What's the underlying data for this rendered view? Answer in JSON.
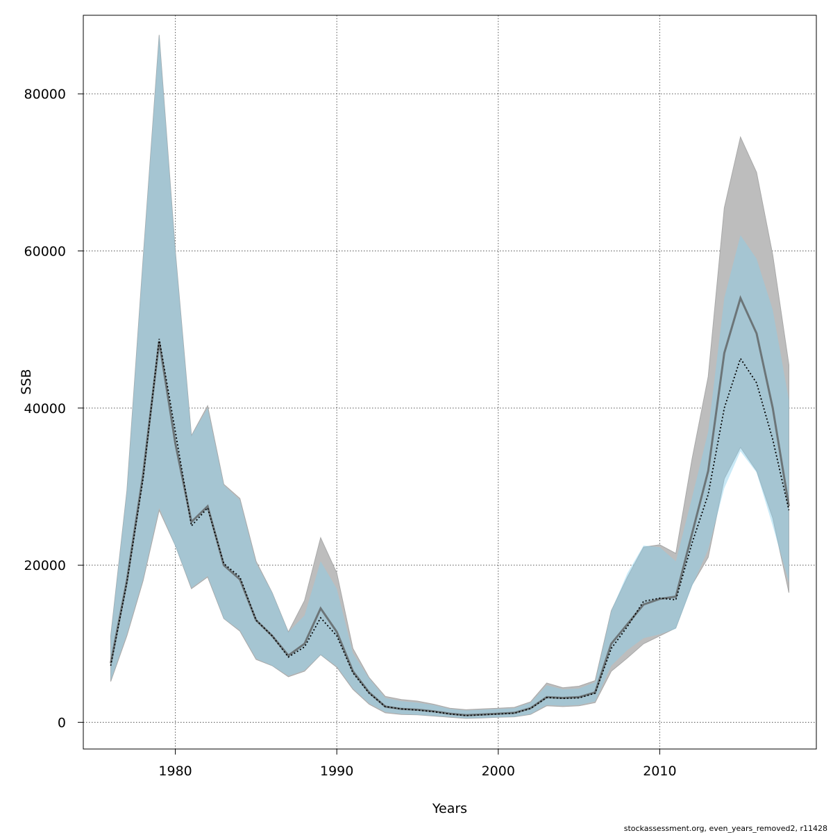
{
  "chart_data": {
    "type": "area",
    "xlabel": "Years",
    "ylabel": "SSB",
    "xlim": [
      1974.3,
      2019.7
    ],
    "ylim": [
      -3400,
      90000
    ],
    "x_ticks": [
      1980,
      1990,
      2000,
      2010
    ],
    "y_ticks": [
      0,
      20000,
      40000,
      60000,
      80000
    ],
    "grid": true,
    "footer": "stockassessment.org, even_years_removed2, r11428",
    "colors": {
      "grey_band": "#bdbdbd",
      "blue_band": "#87ceeb",
      "grey_line": "#5a5a5a",
      "dotted_line": "#000000",
      "grid": "#555555"
    },
    "series": [
      {
        "role": "reference_band_and_line",
        "years": [
          1976,
          1977,
          1978,
          1979,
          1980,
          1981,
          1982,
          1983,
          1984,
          1985,
          1986,
          1987,
          1988,
          1989,
          1990,
          1991,
          1992,
          1993,
          1994,
          1995,
          1996,
          1997,
          1998,
          1999,
          2000,
          2001,
          2002,
          2003,
          2004,
          2005,
          2006,
          2007,
          2008,
          2009,
          2010,
          2011,
          2012,
          2013,
          2014,
          2015,
          2016,
          2017,
          2018
        ],
        "estimate": [
          7500,
          18000,
          31500,
          48500,
          35500,
          25500,
          27500,
          20000,
          18200,
          13000,
          11000,
          8500,
          10000,
          14500,
          11500,
          6500,
          3800,
          2000,
          1700,
          1600,
          1400,
          1100,
          900,
          1000,
          1100,
          1200,
          1800,
          3200,
          3100,
          3200,
          3800,
          10000,
          12500,
          15000,
          15700,
          16000,
          24000,
          32000,
          47000,
          54000,
          49500,
          40000,
          27500
        ],
        "low": [
          5200,
          11000,
          18000,
          27000,
          22500,
          17000,
          18500,
          13200,
          11600,
          8000,
          7200,
          5800,
          6500,
          8600,
          7000,
          4200,
          2300,
          1200,
          1000,
          950,
          800,
          650,
          500,
          550,
          650,
          700,
          1000,
          2100,
          2000,
          2100,
          2500,
          6500,
          8200,
          10000,
          11000,
          12000,
          17500,
          21000,
          31000,
          35000,
          32000,
          26000,
          16500
        ],
        "high": [
          11000,
          29500,
          59000,
          87500,
          60000,
          36500,
          40300,
          30300,
          28500,
          20500,
          16500,
          11500,
          15500,
          23500,
          19000,
          9400,
          5700,
          3300,
          2900,
          2700,
          2300,
          1800,
          1600,
          1700,
          1800,
          1900,
          2600,
          5000,
          4400,
          4600,
          5300,
          14200,
          18500,
          22300,
          22600,
          21500,
          33500,
          44000,
          65500,
          74500,
          70000,
          59500,
          45500
        ]
      },
      {
        "role": "main_band_and_line",
        "years": [
          1976,
          1977,
          1978,
          1979,
          1980,
          1981,
          1982,
          1983,
          1984,
          1985,
          1986,
          1987,
          1988,
          1989,
          1990,
          1991,
          1992,
          1993,
          1994,
          1995,
          1996,
          1997,
          1998,
          1999,
          2000,
          2001,
          2002,
          2003,
          2004,
          2005,
          2006,
          2007,
          2008,
          2009,
          2010,
          2011,
          2012,
          2013,
          2014,
          2015,
          2016,
          2017,
          2018
        ],
        "estimate": [
          7200,
          17800,
          31000,
          48800,
          37000,
          25000,
          27300,
          20200,
          18500,
          13000,
          11000,
          8300,
          9600,
          13300,
          11000,
          6300,
          3700,
          2000,
          1700,
          1550,
          1350,
          1050,
          850,
          950,
          1050,
          1150,
          1750,
          3150,
          3050,
          3100,
          3700,
          9400,
          12200,
          15400,
          15800,
          15600,
          22800,
          29000,
          40000,
          46300,
          43200,
          36000,
          27000
        ],
        "low": [
          5300,
          11200,
          18200,
          27300,
          22400,
          17100,
          18600,
          13200,
          11700,
          8100,
          7200,
          5900,
          6600,
          8600,
          7100,
          4300,
          2400,
          1300,
          1050,
          950,
          820,
          680,
          520,
          560,
          650,
          700,
          1050,
          2200,
          2100,
          2200,
          2650,
          7200,
          9200,
          10700,
          11200,
          11900,
          17300,
          22000,
          29800,
          34500,
          31800,
          25000,
          17800
        ],
        "high": [
          11000,
          29500,
          59000,
          87500,
          60000,
          36500,
          40000,
          30200,
          28300,
          20300,
          16500,
          11500,
          13600,
          20500,
          17000,
          8800,
          5600,
          3100,
          2700,
          2500,
          2200,
          1700,
          1500,
          1600,
          1700,
          1800,
          2500,
          4700,
          4200,
          4300,
          5100,
          14200,
          19000,
          22500,
          22300,
          20500,
          28600,
          37000,
          54000,
          62000,
          59000,
          52500,
          41000
        ]
      }
    ]
  }
}
